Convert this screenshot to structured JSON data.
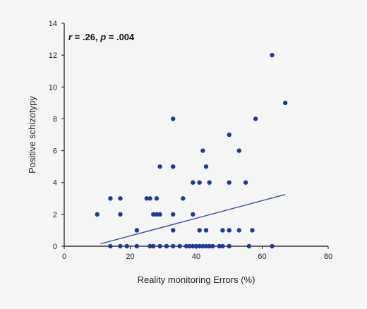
{
  "chart_data": {
    "type": "scatter",
    "xlabel": "Reality monitoring Errors (%)",
    "ylabel": "Positive schizotypy",
    "xlim": [
      0,
      80
    ],
    "ylim": [
      0,
      14
    ],
    "x_ticks": [
      0,
      20,
      40,
      60,
      80
    ],
    "y_ticks": [
      0,
      2,
      4,
      6,
      8,
      10,
      12,
      14
    ],
    "grid": false,
    "annotation": {
      "r_label": "r",
      "r_text": " = .26, ",
      "p_label": "p",
      "p_text": " = .004"
    },
    "colors": {
      "points": "#1f3a93",
      "trendline": "#2e4aa8",
      "axes": "#111111"
    },
    "trendline": {
      "x": [
        11,
        67
      ],
      "y": [
        0.15,
        3.25
      ]
    },
    "points": [
      {
        "x": 10,
        "y": 2
      },
      {
        "x": 14,
        "y": 3
      },
      {
        "x": 14,
        "y": 0
      },
      {
        "x": 17,
        "y": 3
      },
      {
        "x": 17,
        "y": 2
      },
      {
        "x": 17,
        "y": 0
      },
      {
        "x": 19,
        "y": 0
      },
      {
        "x": 22,
        "y": 1
      },
      {
        "x": 22,
        "y": 0
      },
      {
        "x": 25,
        "y": 3
      },
      {
        "x": 26,
        "y": 3
      },
      {
        "x": 26,
        "y": 0
      },
      {
        "x": 27,
        "y": 2
      },
      {
        "x": 27,
        "y": 0
      },
      {
        "x": 28,
        "y": 3
      },
      {
        "x": 28,
        "y": 2
      },
      {
        "x": 29,
        "y": 5
      },
      {
        "x": 29,
        "y": 2
      },
      {
        "x": 29,
        "y": 0
      },
      {
        "x": 31,
        "y": 0
      },
      {
        "x": 33,
        "y": 8
      },
      {
        "x": 33,
        "y": 5
      },
      {
        "x": 33,
        "y": 2
      },
      {
        "x": 33,
        "y": 1
      },
      {
        "x": 33,
        "y": 0
      },
      {
        "x": 35,
        "y": 0
      },
      {
        "x": 36,
        "y": 3
      },
      {
        "x": 37,
        "y": 0
      },
      {
        "x": 38,
        "y": 0
      },
      {
        "x": 39,
        "y": 4
      },
      {
        "x": 39,
        "y": 2
      },
      {
        "x": 39,
        "y": 0
      },
      {
        "x": 40,
        "y": 0
      },
      {
        "x": 41,
        "y": 4
      },
      {
        "x": 41,
        "y": 1
      },
      {
        "x": 41,
        "y": 0
      },
      {
        "x": 42,
        "y": 6
      },
      {
        "x": 42,
        "y": 0
      },
      {
        "x": 43,
        "y": 5
      },
      {
        "x": 43,
        "y": 1
      },
      {
        "x": 43,
        "y": 0
      },
      {
        "x": 44,
        "y": 4
      },
      {
        "x": 44,
        "y": 0
      },
      {
        "x": 45,
        "y": 0
      },
      {
        "x": 47,
        "y": 0
      },
      {
        "x": 48,
        "y": 1
      },
      {
        "x": 48,
        "y": 0
      },
      {
        "x": 50,
        "y": 7
      },
      {
        "x": 50,
        "y": 4
      },
      {
        "x": 50,
        "y": 1
      },
      {
        "x": 50,
        "y": 0
      },
      {
        "x": 53,
        "y": 6
      },
      {
        "x": 53,
        "y": 1
      },
      {
        "x": 55,
        "y": 4
      },
      {
        "x": 56,
        "y": 0
      },
      {
        "x": 57,
        "y": 1
      },
      {
        "x": 58,
        "y": 8
      },
      {
        "x": 63,
        "y": 12
      },
      {
        "x": 63,
        "y": 0
      },
      {
        "x": 67,
        "y": 9
      }
    ]
  }
}
